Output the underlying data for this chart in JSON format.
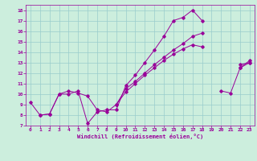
{
  "title": "",
  "xlabel": "Windchill (Refroidissement éolien,°C)",
  "bg_color": "#cceedd",
  "line_color": "#990099",
  "grid_color": "#99cccc",
  "xlim": [
    -0.5,
    23.5
  ],
  "ylim": [
    7,
    18.5
  ],
  "yticks": [
    7,
    8,
    9,
    10,
    11,
    12,
    13,
    14,
    15,
    16,
    17,
    18
  ],
  "xticks": [
    0,
    1,
    2,
    3,
    4,
    5,
    6,
    7,
    8,
    9,
    10,
    11,
    12,
    13,
    14,
    15,
    16,
    17,
    18,
    19,
    20,
    21,
    22,
    23
  ],
  "lines": [
    {
      "segments": [
        {
          "x": [
            0,
            1,
            2,
            3,
            4,
            5,
            6,
            7,
            8,
            9,
            10,
            11,
            12,
            13,
            14,
            15,
            16,
            17,
            18
          ],
          "y": [
            9.2,
            8.0,
            8.1,
            10.0,
            10.0,
            10.3,
            7.2,
            8.3,
            8.5,
            8.5,
            10.8,
            11.8,
            13.0,
            14.2,
            15.5,
            17.0,
            17.3,
            18.0,
            17.0
          ]
        },
        {
          "x": [
            21,
            22,
            23
          ],
          "y": [
            null,
            12.8,
            13.0
          ]
        }
      ]
    },
    {
      "segments": [
        {
          "x": [
            1,
            2,
            3,
            4,
            5,
            6,
            7,
            8,
            9,
            10,
            11,
            12,
            13,
            14,
            15,
            16,
            17,
            18,
            19,
            20,
            21,
            22,
            23
          ],
          "y": [
            8.0,
            8.1,
            10.0,
            10.3,
            10.1,
            9.8,
            8.5,
            8.3,
            9.0,
            10.5,
            11.2,
            12.0,
            12.8,
            13.5,
            14.2,
            14.8,
            15.5,
            15.8,
            null,
            null,
            null,
            12.5,
            13.2
          ]
        }
      ]
    },
    {
      "segments": [
        {
          "x": [
            0,
            1,
            2,
            3,
            4,
            5,
            6,
            7,
            8,
            9,
            10,
            11,
            12,
            13,
            14,
            15,
            16,
            17,
            18,
            19,
            20,
            21,
            22,
            23
          ],
          "y": [
            null,
            null,
            null,
            null,
            null,
            null,
            null,
            null,
            null,
            9.0,
            10.2,
            11.0,
            11.8,
            12.5,
            13.2,
            13.8,
            14.3,
            14.7,
            14.5,
            null,
            10.3,
            10.1,
            12.5,
            13.0
          ]
        }
      ]
    }
  ]
}
